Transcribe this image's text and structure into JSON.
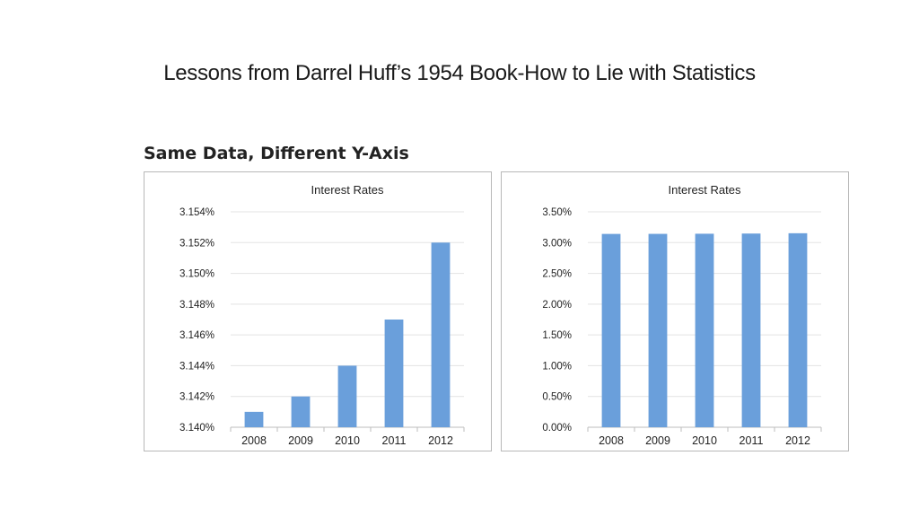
{
  "slide": {
    "title": "Lessons from Darrel Huff’s 1954 Book-How to Lie with Statistics",
    "figure_heading": "Same Data, Different Y-Axis"
  },
  "colors": {
    "bar": "#6a9fdb",
    "grid": "#e3e3e3",
    "axis": "#bdbdbd",
    "text": "#222222"
  },
  "chart_data": [
    {
      "type": "bar",
      "title": "Interest Rates",
      "categories": [
        "2008",
        "2009",
        "2010",
        "2011",
        "2012"
      ],
      "values": [
        3.141,
        3.142,
        3.144,
        3.147,
        3.152
      ],
      "ylim": [
        3.14,
        3.154
      ],
      "yticks": [
        3.14,
        3.142,
        3.144,
        3.146,
        3.148,
        3.15,
        3.152,
        3.154
      ],
      "ytick_labels": [
        "3.140%",
        "3.142%",
        "3.144%",
        "3.146%",
        "3.148%",
        "3.150%",
        "3.152%",
        "3.154%"
      ],
      "grid": true,
      "xlabel": "",
      "ylabel": ""
    },
    {
      "type": "bar",
      "title": "Interest Rates",
      "categories": [
        "2008",
        "2009",
        "2010",
        "2011",
        "2012"
      ],
      "values": [
        3.141,
        3.142,
        3.144,
        3.147,
        3.152
      ],
      "ylim": [
        0,
        3.5
      ],
      "yticks": [
        0,
        0.5,
        1.0,
        1.5,
        2.0,
        2.5,
        3.0,
        3.5
      ],
      "ytick_labels": [
        "0.00%",
        "0.50%",
        "1.00%",
        "1.50%",
        "2.00%",
        "2.50%",
        "3.00%",
        "3.50%"
      ],
      "grid": true,
      "xlabel": "",
      "ylabel": ""
    }
  ]
}
